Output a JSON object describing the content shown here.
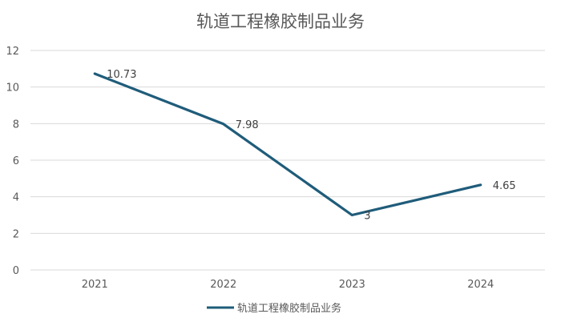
{
  "chart_data": {
    "type": "line",
    "title": "轨道工程橡胶制品业务",
    "xlabel": "",
    "ylabel": "",
    "categories": [
      "2021",
      "2022",
      "2023",
      "2024"
    ],
    "series": [
      {
        "name": "轨道工程橡胶制品业务",
        "values": [
          10.73,
          7.98,
          3,
          4.65
        ],
        "labels": [
          "10.73",
          "7.98",
          "3",
          "4.65"
        ],
        "color": "#1f5c7a"
      }
    ],
    "ylim": [
      0,
      12
    ],
    "yticks": [
      "0",
      "2",
      "4",
      "6",
      "8",
      "10",
      "12"
    ],
    "grid": true,
    "legend": "bottom",
    "colors": {
      "grid": "#d9d9d9",
      "text": "#595959",
      "line": "#1f5c7a"
    }
  }
}
